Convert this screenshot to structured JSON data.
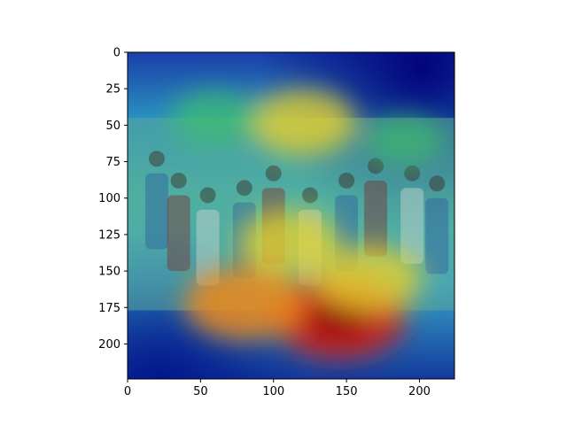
{
  "chart_data": {
    "type": "heatmap",
    "title": "",
    "xlabel": "",
    "ylabel": "",
    "xlim": [
      0,
      224
    ],
    "ylim": [
      224,
      0
    ],
    "x_ticks": [
      0,
      50,
      100,
      150,
      200
    ],
    "y_ticks": [
      0,
      25,
      50,
      75,
      100,
      125,
      150,
      175,
      200
    ],
    "grid": false,
    "image_extent": {
      "x": [
        0,
        224
      ],
      "y": [
        45,
        177
      ]
    },
    "image_content": "outdoor crowd scene photo overlaid with attention heatmap",
    "colormap": "jet",
    "hotspots": [
      {
        "x": 145,
        "y": 182,
        "intensity": 1.0
      },
      {
        "x": 80,
        "y": 172,
        "intensity": 0.85
      },
      {
        "x": 165,
        "y": 155,
        "intensity": 0.7
      },
      {
        "x": 110,
        "y": 130,
        "intensity": 0.65
      },
      {
        "x": 120,
        "y": 48,
        "intensity": 0.7
      },
      {
        "x": 60,
        "y": 45,
        "intensity": 0.5
      },
      {
        "x": 190,
        "y": 60,
        "intensity": 0.4
      }
    ]
  },
  "colors": {
    "deep_blue": "#00008b",
    "mid_blue": "#1f4fbf",
    "cyan": "#1fb5c2",
    "green": "#3fbf6a",
    "yellow": "#e8d22a",
    "orange": "#f08a1a",
    "red": "#d0201a",
    "dark_red": "#8b0000"
  }
}
